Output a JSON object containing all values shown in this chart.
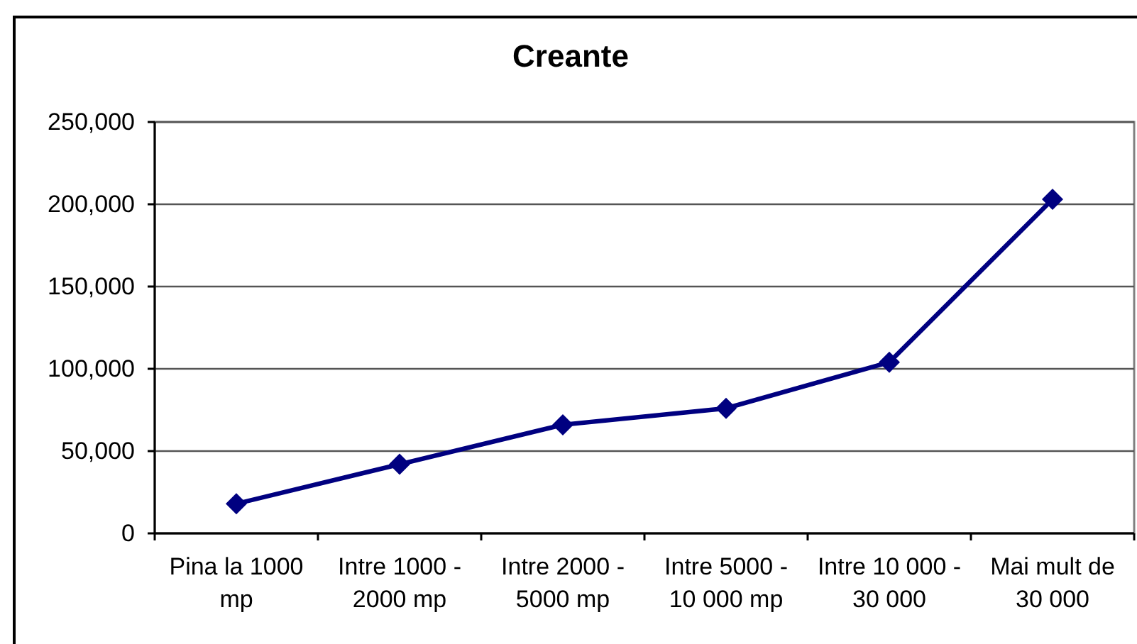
{
  "chart_data": {
    "type": "line",
    "title": "Creante",
    "categories": [
      "Pina la 1000 mp",
      "Intre 1000 - 2000 mp",
      "Intre 2000 - 5000 mp",
      "Intre 5000 - 10 000 mp",
      "Intre 10 000 - 30 000",
      "Mai mult de 30 000"
    ],
    "values": [
      18000,
      42000,
      66000,
      76000,
      104000,
      203000
    ],
    "color": "#000080",
    "ylim": [
      0,
      250000
    ],
    "yticks": [
      0,
      {
        "value": 50000,
        "label": "50,000"
      },
      {
        "value": 100000,
        "label": "100,000"
      },
      {
        "value": 150000,
        "label": "150,000"
      },
      {
        "value": 200000,
        "label": "200,000"
      },
      {
        "value": 250000,
        "label": "250,000"
      }
    ],
    "grid": "y",
    "marker": "diamond",
    "line_style": "solid"
  }
}
